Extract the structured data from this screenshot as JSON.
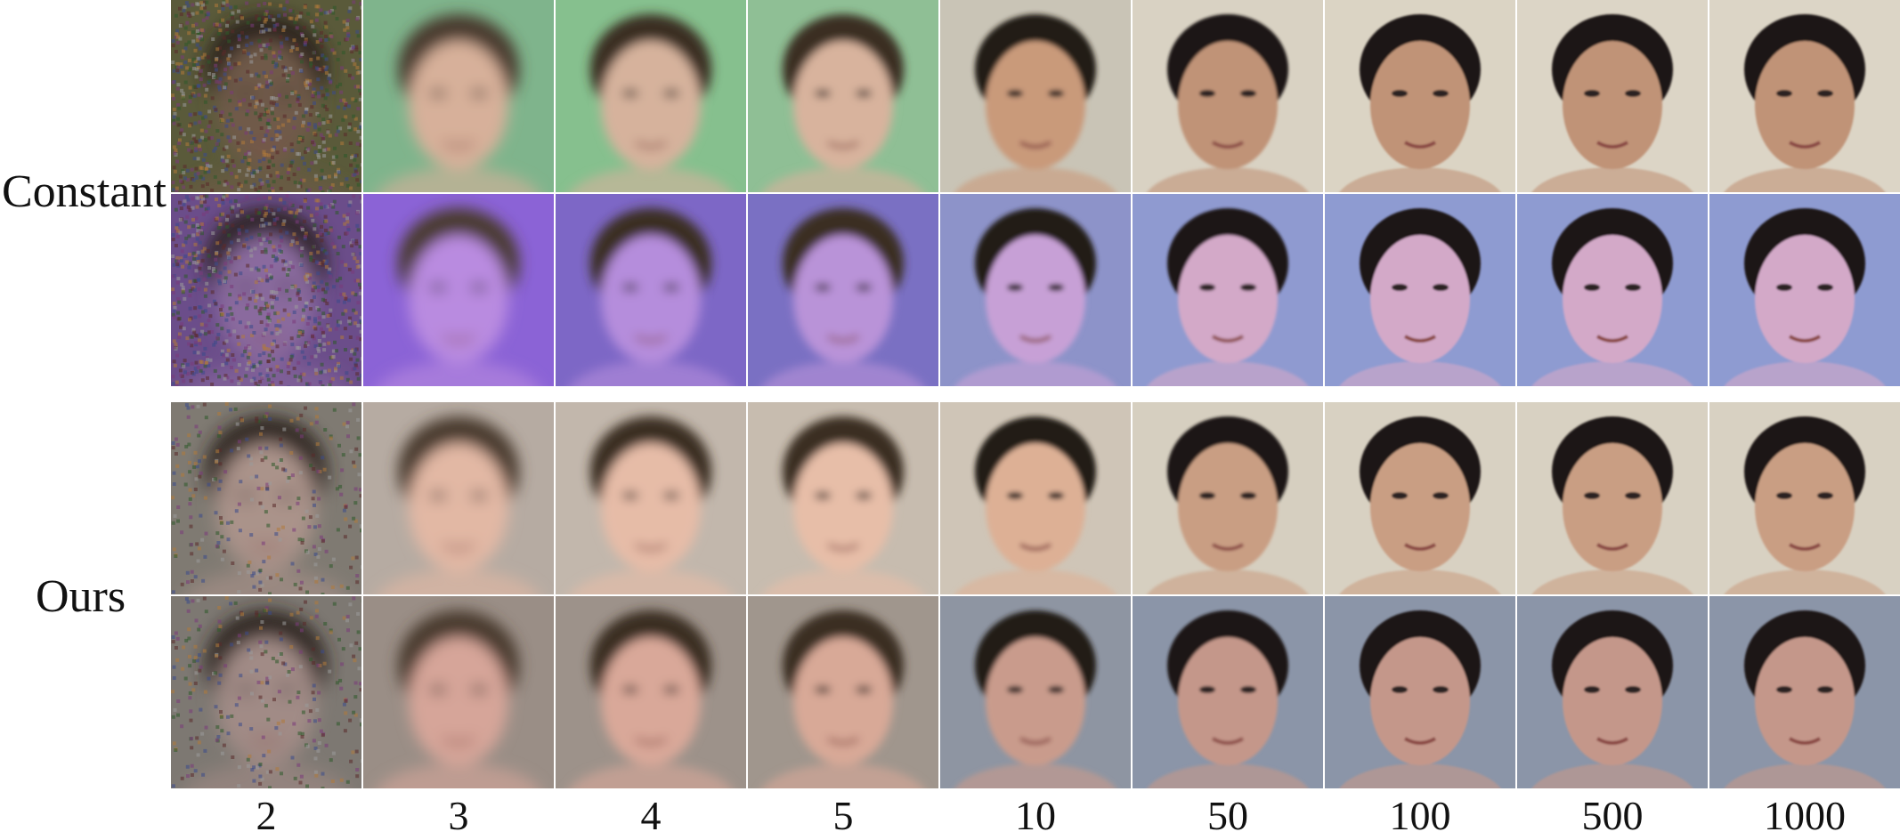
{
  "rows": {
    "constant_label": "Constant",
    "ours_label": "Ours"
  },
  "x_labels": [
    "2",
    "3",
    "4",
    "5",
    "10",
    "50",
    "100",
    "500",
    "1000"
  ],
  "tones": {
    "constant_top": [
      "#5a5a3a",
      "#7fb48c",
      "#86c08e",
      "#8fbf95",
      "#c9c4b6",
      "#d9d2c3",
      "#dbd4c4",
      "#dcd5c6",
      "#dcd5c6"
    ],
    "constant_bottom": [
      "#6b4d8a",
      "#8b63d6",
      "#7d67c6",
      "#7a70c3",
      "#8d93c9",
      "#8f9ad0",
      "#8e9bd1",
      "#8e9bd1",
      "#8e9bd1"
    ],
    "ours_top": [
      "#7f7a72",
      "#b6aba2",
      "#c2b7ac",
      "#c7bcaf",
      "#cfc5b7",
      "#d6cfc0",
      "#d8d1c2",
      "#d8d1c2",
      "#d8d1c2"
    ],
    "ours_bottom": [
      "#7d7872",
      "#9a8e86",
      "#9d928a",
      "#a0968d",
      "#8e95a2",
      "#8b95a8",
      "#8b95a8",
      "#8b95a8",
      "#8b95a8"
    ],
    "skin_constant_top": [
      "#6f5a4a",
      "#d7b09a",
      "#d6b29c",
      "#d8b39d",
      "#c99a7a",
      "#c09377",
      "#c09377",
      "#c09377",
      "#c09377"
    ],
    "skin_constant_bottom": [
      "#8a6a9e",
      "#b98be0",
      "#b58ddc",
      "#b993d8",
      "#c7a0d6",
      "#d3a9c8",
      "#d3a9c8",
      "#d3a9c8",
      "#d3a9c8"
    ],
    "skin_ours_top": [
      "#aa938a",
      "#e2b8a4",
      "#e6bca7",
      "#e7bea8",
      "#ddb095",
      "#c99e83",
      "#c99e83",
      "#c99e83",
      "#c99e83"
    ],
    "skin_ours_bottom": [
      "#a18b86",
      "#d6a599",
      "#d9a899",
      "#d8a997",
      "#c99b8c",
      "#c4978a",
      "#c4978a",
      "#c4978a",
      "#c4978a"
    ],
    "hair": [
      "#2a241e",
      "#4a3b2f",
      "#3b2e24",
      "#3a2d23",
      "#231c17",
      "#1b1613",
      "#1b1613",
      "#1b1613",
      "#1b1613"
    ]
  }
}
